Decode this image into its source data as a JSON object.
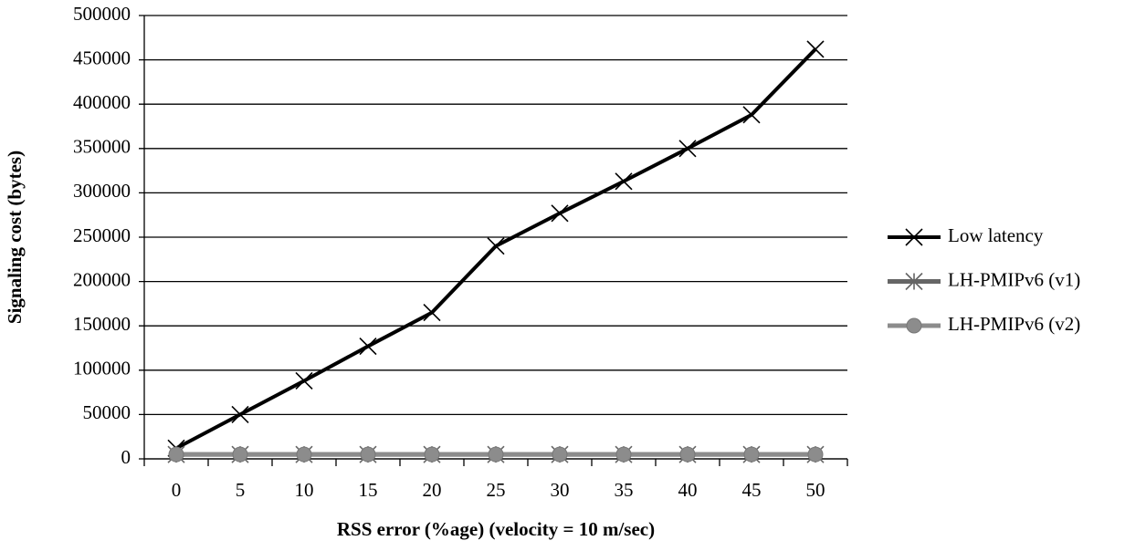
{
  "chart_data": {
    "type": "line",
    "x_label": "RSS error (%age) (velocity = 10 m/sec)",
    "y_label": "Signaling cost (bytes)",
    "categories": [
      "0",
      "5",
      "10",
      "15",
      "20",
      "25",
      "30",
      "35",
      "40",
      "45",
      "50"
    ],
    "series": [
      {
        "name": "Low latency",
        "color": "#000000",
        "marker": "x",
        "values": [
          12000,
          50000,
          88000,
          127000,
          165000,
          240000,
          277000,
          313000,
          350000,
          388000,
          462000
        ]
      },
      {
        "name": "LH-PMIPv6 (v1)",
        "color": "#666666",
        "marker": "asterisk",
        "values": [
          5000,
          5000,
          5000,
          5000,
          5000,
          5000,
          5000,
          5000,
          5000,
          5000,
          5000
        ]
      },
      {
        "name": "LH-PMIPv6 (v2)",
        "color": "#8c8c8c",
        "marker": "circle",
        "values": [
          5000,
          5000,
          5000,
          5000,
          5000,
          5000,
          5000,
          5000,
          5000,
          5000,
          5000
        ]
      }
    ],
    "ylim": [
      0,
      500000
    ],
    "yticks": [
      0,
      50000,
      100000,
      150000,
      200000,
      250000,
      300000,
      350000,
      400000,
      450000,
      500000
    ],
    "grid": true,
    "legend": "right"
  }
}
